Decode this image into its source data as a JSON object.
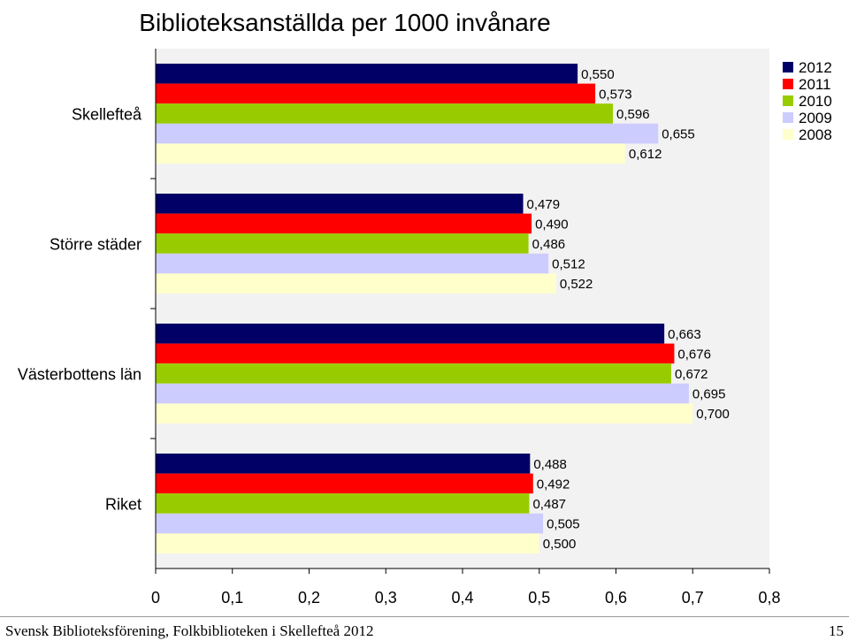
{
  "chart_data": {
    "type": "bar",
    "orientation": "horizontal",
    "title": "Biblioteksanställda per 1000 invånare",
    "categories": [
      "Skellefteå",
      "Större städer",
      "Västerbottens län",
      "Riket"
    ],
    "series": [
      {
        "name": "2012",
        "color": "#000066",
        "values": [
          0.55,
          0.479,
          0.663,
          0.488
        ],
        "labels": [
          "0,550",
          "0,479",
          "0,663",
          "0,488"
        ]
      },
      {
        "name": "2011",
        "color": "#ff0000",
        "values": [
          0.573,
          0.49,
          0.676,
          0.492
        ],
        "labels": [
          "0,573",
          "0,490",
          "0,676",
          "0,492"
        ]
      },
      {
        "name": "2010",
        "color": "#99cc00",
        "values": [
          0.596,
          0.486,
          0.672,
          0.487
        ],
        "labels": [
          "0,596",
          "0,486",
          "0,672",
          "0,487"
        ]
      },
      {
        "name": "2009",
        "color": "#ccccff",
        "values": [
          0.655,
          0.512,
          0.695,
          0.505
        ],
        "labels": [
          "0,655",
          "0,512",
          "0,695",
          "0,505"
        ]
      },
      {
        "name": "2008",
        "color": "#ffffcc",
        "values": [
          0.612,
          0.522,
          0.7,
          0.5
        ],
        "labels": [
          "0,612",
          "0,522",
          "0,700",
          "0,500"
        ]
      }
    ],
    "xlim": [
      0,
      0.8
    ],
    "xticks": [
      "0",
      "0,1",
      "0,2",
      "0,3",
      "0,4",
      "0,5",
      "0,6",
      "0,7",
      "0,8"
    ],
    "plot_background": "#f2f2f2",
    "grid": false,
    "legend_position": "top-right"
  },
  "footer": {
    "left": "Svensk Biblioteksförening, Folkbiblioteken i Skellefteå 2012",
    "right": "15"
  }
}
